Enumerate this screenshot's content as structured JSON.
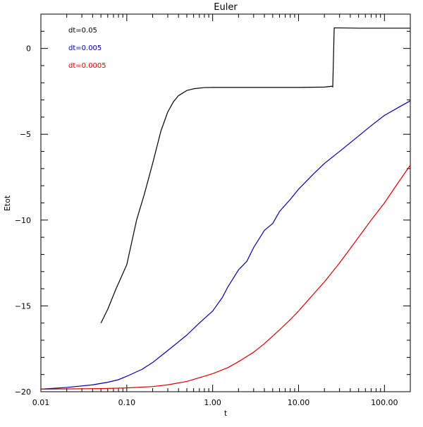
{
  "chart_data": {
    "type": "line",
    "title": "Euler",
    "xlabel": "t",
    "ylabel": "Etot",
    "xscale": "log",
    "xlim": [
      0.01,
      200
    ],
    "ylim": [
      -20,
      2
    ],
    "grid": false,
    "legend_placement": "top-left",
    "xticks": [
      {
        "value": 0.01,
        "label": "0.01"
      },
      {
        "value": 0.1,
        "label": "0.10"
      },
      {
        "value": 1,
        "label": "1.00"
      },
      {
        "value": 10,
        "label": "10.00"
      },
      {
        "value": 100,
        "label": "100.00"
      }
    ],
    "yticks": [
      {
        "value": 0,
        "label": "0"
      },
      {
        "value": -5,
        "label": "−5"
      },
      {
        "value": -10,
        "label": "−10"
      },
      {
        "value": -15,
        "label": "−15"
      },
      {
        "value": -20,
        "label": "−20"
      }
    ],
    "series": [
      {
        "name": "dt=0.05",
        "color": "#000000",
        "points": [
          [
            0.05,
            -16.0
          ],
          [
            0.06,
            -15.2
          ],
          [
            0.075,
            -14.0
          ],
          [
            0.1,
            -12.6
          ],
          [
            0.13,
            -10.0
          ],
          [
            0.16,
            -8.5
          ],
          [
            0.2,
            -6.7
          ],
          [
            0.25,
            -4.8
          ],
          [
            0.3,
            -3.7
          ],
          [
            0.35,
            -3.1
          ],
          [
            0.4,
            -2.75
          ],
          [
            0.5,
            -2.45
          ],
          [
            0.6,
            -2.35
          ],
          [
            0.8,
            -2.28
          ],
          [
            1.0,
            -2.27
          ],
          [
            2.0,
            -2.27
          ],
          [
            5.0,
            -2.27
          ],
          [
            10.0,
            -2.27
          ],
          [
            20.0,
            -2.25
          ],
          [
            25.0,
            -2.2
          ],
          [
            25.0,
            -2.25
          ],
          [
            26.0,
            1.2
          ],
          [
            50.0,
            1.18
          ],
          [
            200.0,
            1.18
          ]
        ]
      },
      {
        "name": "dt=0.005",
        "color": "#0000aa",
        "points": [
          [
            0.01,
            -19.85
          ],
          [
            0.02,
            -19.75
          ],
          [
            0.04,
            -19.6
          ],
          [
            0.06,
            -19.45
          ],
          [
            0.08,
            -19.3
          ],
          [
            0.1,
            -19.1
          ],
          [
            0.15,
            -18.7
          ],
          [
            0.2,
            -18.3
          ],
          [
            0.3,
            -17.6
          ],
          [
            0.5,
            -16.7
          ],
          [
            0.7,
            -16.0
          ],
          [
            1.0,
            -15.3
          ],
          [
            1.3,
            -14.5
          ],
          [
            1.5,
            -13.9
          ],
          [
            2.0,
            -12.9
          ],
          [
            2.5,
            -12.4
          ],
          [
            3.0,
            -11.6
          ],
          [
            4.0,
            -10.6
          ],
          [
            5.0,
            -10.2
          ],
          [
            6.0,
            -9.5
          ],
          [
            8.0,
            -8.8
          ],
          [
            10.0,
            -8.2
          ],
          [
            15.0,
            -7.3
          ],
          [
            20.0,
            -6.7
          ],
          [
            30.0,
            -6.0
          ],
          [
            50.0,
            -5.1
          ],
          [
            70.0,
            -4.5
          ],
          [
            100.0,
            -3.9
          ],
          [
            150.0,
            -3.4
          ],
          [
            200.0,
            -3.05
          ]
        ]
      },
      {
        "name": "dt=0.0005",
        "color": "#dd0000",
        "points": [
          [
            0.01,
            -19.85
          ],
          [
            0.05,
            -19.82
          ],
          [
            0.1,
            -19.78
          ],
          [
            0.2,
            -19.7
          ],
          [
            0.3,
            -19.6
          ],
          [
            0.5,
            -19.4
          ],
          [
            0.8,
            -19.1
          ],
          [
            1.0,
            -18.95
          ],
          [
            1.5,
            -18.6
          ],
          [
            2.0,
            -18.25
          ],
          [
            3.0,
            -17.7
          ],
          [
            4.0,
            -17.2
          ],
          [
            6.0,
            -16.4
          ],
          [
            8.0,
            -15.8
          ],
          [
            10.0,
            -15.3
          ],
          [
            15.0,
            -14.3
          ],
          [
            20.0,
            -13.6
          ],
          [
            30.0,
            -12.5
          ],
          [
            50.0,
            -11.0
          ],
          [
            70.0,
            -10.0
          ],
          [
            100.0,
            -9.0
          ],
          [
            150.0,
            -7.7
          ],
          [
            200.0,
            -6.8
          ]
        ]
      }
    ]
  }
}
